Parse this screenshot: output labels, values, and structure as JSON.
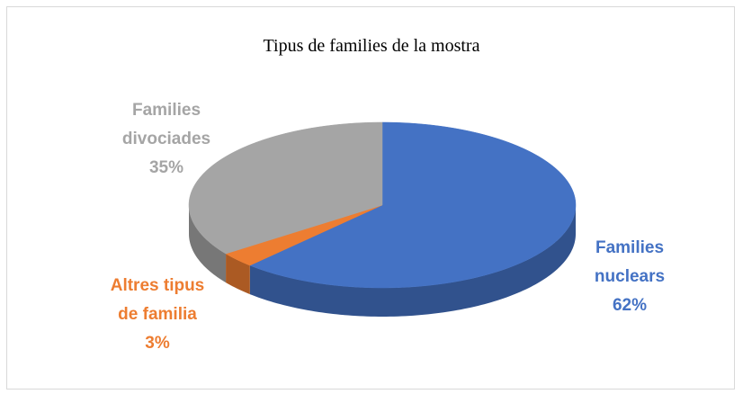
{
  "chart_data": {
    "type": "pie",
    "title": "Tipus de families de la mostra",
    "categories": [
      "Families nuclears",
      "Altres tipus de familia",
      "Families divociades"
    ],
    "values": [
      62,
      3,
      35
    ],
    "value_labels": [
      "62%",
      "3%",
      "35%"
    ],
    "colors": [
      "#4472c4",
      "#ed7d31",
      "#a5a5a5"
    ]
  }
}
